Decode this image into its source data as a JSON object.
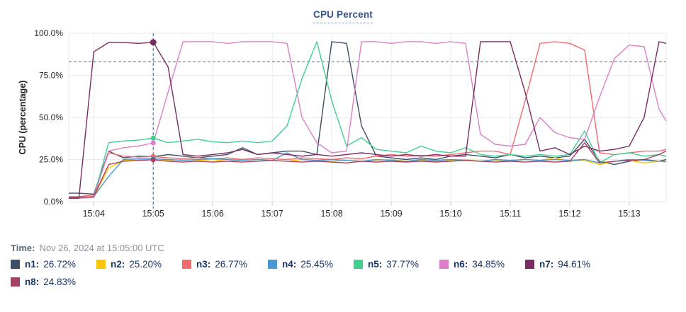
{
  "time_caption": {
    "label": "Time:",
    "value": "Nov 26, 2024 at 15:05:00 UTC"
  },
  "chart_data": {
    "type": "line",
    "title": "CPU Percent",
    "ylabel": "CPU (percentage)",
    "ylim": [
      0,
      100
    ],
    "grid": true,
    "legend_position": "bottom",
    "y_ticks": [
      {
        "value": 0,
        "label": "0.0%"
      },
      {
        "value": 25,
        "label": "25.0%"
      },
      {
        "value": 50,
        "label": "50.0%"
      },
      {
        "value": 75,
        "label": "75.0%"
      },
      {
        "value": 100,
        "label": "100.0%"
      }
    ],
    "x_ticks": [
      {
        "minute": 4,
        "label": "15:04"
      },
      {
        "minute": 5,
        "label": "15:05"
      },
      {
        "minute": 6,
        "label": "15:06"
      },
      {
        "minute": 7,
        "label": "15:07"
      },
      {
        "minute": 8,
        "label": "15:08"
      },
      {
        "minute": 9,
        "label": "15:09"
      },
      {
        "minute": 10,
        "label": "15:10"
      },
      {
        "minute": 11,
        "label": "15:11"
      },
      {
        "minute": 12,
        "label": "15:12"
      },
      {
        "minute": 13,
        "label": "15:13"
      }
    ],
    "x_domain_minutes": [
      3.58,
      13.62
    ],
    "x_start_minute": 3.75,
    "x_step_minute": 0.25,
    "threshold_line": {
      "value": 83,
      "style": "dashed",
      "color": "#4d7c92"
    },
    "crosshair": {
      "x_minute": 5,
      "style": "dashed",
      "color": "#4d7c92"
    },
    "series": [
      {
        "name": "n1",
        "color": "#3f4e66",
        "values": [
          5,
          4.5,
          30,
          26,
          27,
          26.72,
          28,
          27,
          26,
          27,
          28,
          32,
          28,
          29,
          30,
          30,
          28,
          95,
          94,
          45,
          27,
          26,
          25,
          26,
          25,
          27,
          28,
          27,
          26,
          28,
          26,
          27,
          26,
          27,
          37,
          24,
          22,
          24,
          25,
          24,
          25
        ]
      },
      {
        "name": "n2",
        "color": "#fdc500",
        "values": [
          2.5,
          3,
          20,
          24.5,
          25,
          25.2,
          24.5,
          25,
          24.5,
          25,
          24,
          24.5,
          25,
          24.5,
          24,
          25,
          24.5,
          24,
          24.5,
          24,
          24.5,
          25,
          24,
          24.5,
          24,
          24.5,
          25,
          24,
          24.5,
          24,
          25,
          24.5,
          26,
          24,
          24.5,
          22,
          24,
          24.5,
          23,
          24,
          23.5
        ]
      },
      {
        "name": "n3",
        "color": "#f4696a",
        "values": [
          3,
          4,
          29,
          27,
          26.5,
          26.77,
          26,
          25.5,
          26,
          25.5,
          26,
          25,
          26,
          25.5,
          25,
          26,
          25.5,
          25,
          26,
          25.5,
          27,
          28,
          27,
          27.5,
          27,
          28,
          29,
          30,
          30,
          28,
          60,
          94,
          95,
          94,
          90,
          29,
          28,
          29,
          30,
          30,
          31
        ]
      },
      {
        "name": "n4",
        "color": "#4b97d2",
        "values": [
          2.5,
          3,
          15,
          25,
          25.5,
          25.45,
          25,
          24.5,
          25,
          25.5,
          25,
          24.5,
          25,
          24.5,
          29,
          25,
          24.5,
          25,
          24.5,
          24,
          25,
          24.5,
          24,
          25,
          24.5,
          25,
          24.5,
          24,
          25,
          24.5,
          25,
          24.5,
          25,
          24.5,
          25,
          23,
          24,
          25,
          24.5,
          24,
          24
        ]
      },
      {
        "name": "n5",
        "color": "#3fd08f",
        "values": [
          2,
          2.5,
          35,
          36,
          36.5,
          37.77,
          35,
          36,
          37,
          35.5,
          35,
          36,
          35,
          36,
          45,
          73,
          95,
          60,
          33,
          38,
          31,
          30,
          29,
          33,
          30,
          29,
          32,
          28,
          27,
          28,
          27,
          28,
          27,
          28,
          42,
          23,
          28,
          29,
          27,
          28,
          27
        ]
      },
      {
        "name": "n6",
        "color": "#dc7ec8",
        "values": [
          2,
          2.5,
          30,
          32,
          33,
          34.85,
          65,
          95,
          95,
          95,
          94,
          95,
          95,
          95,
          94,
          50,
          35,
          29,
          30,
          95,
          95,
          94,
          95,
          95,
          94,
          95,
          94,
          40,
          34,
          33,
          34,
          50,
          41,
          38,
          37,
          62,
          85,
          93,
          92,
          55,
          48
        ]
      },
      {
        "name": "n7",
        "color": "#7c2a62",
        "values": [
          2,
          89,
          94.5,
          94.5,
          94,
          94.61,
          80,
          28,
          27,
          28,
          29,
          31,
          28,
          29,
          28,
          27,
          28,
          27,
          28,
          29,
          28,
          27,
          28,
          27,
          28,
          27,
          27,
          95,
          95,
          95,
          65,
          30,
          32,
          28,
          33,
          30,
          31,
          33,
          50,
          95,
          94
        ]
      },
      {
        "name": "n8",
        "color": "#a54261",
        "values": [
          2.5,
          3,
          22,
          24,
          24.5,
          24.83,
          24,
          23.5,
          24,
          23.5,
          24,
          23.5,
          24,
          24.5,
          24,
          23.5,
          24,
          23.5,
          23,
          24,
          23.5,
          24,
          23.5,
          24,
          23.5,
          24,
          24.5,
          24,
          23.5,
          24,
          23.5,
          24,
          23.5,
          24,
          35,
          23,
          24,
          24.5,
          25,
          28,
          30
        ]
      }
    ]
  },
  "legend": {
    "items": [
      {
        "key": "n1",
        "label": "n1:",
        "value": "26.72%",
        "color": "#3f4e66"
      },
      {
        "key": "n2",
        "label": "n2:",
        "value": "25.20%",
        "color": "#fdc500"
      },
      {
        "key": "n3",
        "label": "n3:",
        "value": "26.77%",
        "color": "#f4696a"
      },
      {
        "key": "n4",
        "label": "n4:",
        "value": "25.45%",
        "color": "#4b97d2"
      },
      {
        "key": "n5",
        "label": "n5:",
        "value": "37.77%",
        "color": "#3fd08f"
      },
      {
        "key": "n6",
        "label": "n6:",
        "value": "34.85%",
        "color": "#dc7ec8"
      },
      {
        "key": "n7",
        "label": "n7:",
        "value": "94.61%",
        "color": "#7c2a62"
      },
      {
        "key": "n8",
        "label": "n8:",
        "value": "24.83%",
        "color": "#a54261"
      }
    ]
  },
  "colors": {
    "grid": "#e8eaec",
    "tick_stub": "#d8dadd",
    "dashed_guides": "#4d7c92",
    "title_text": "#36518b",
    "legend_text": "#17356b"
  }
}
